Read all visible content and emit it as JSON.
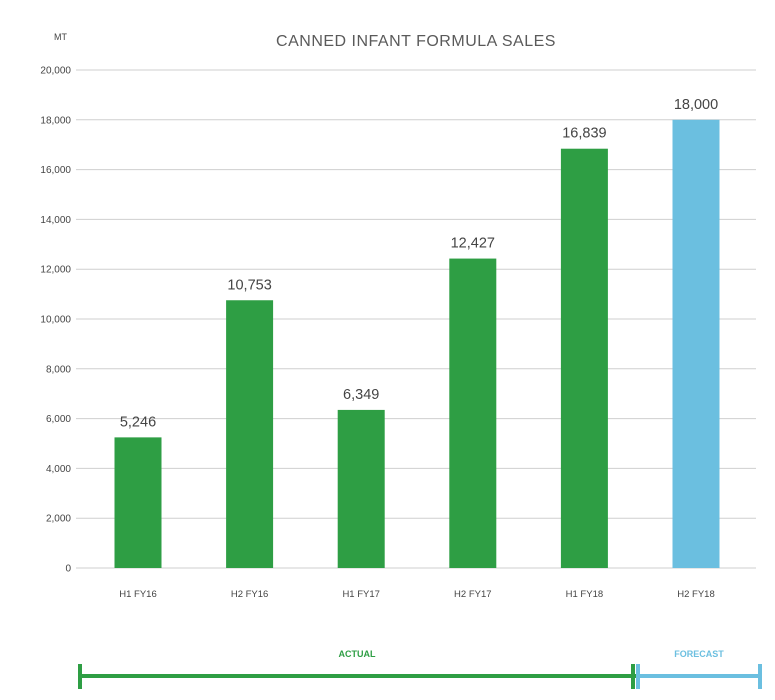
{
  "chart_data": {
    "type": "bar",
    "title": "CANNED INFANT FORMULA SALES",
    "ylabel": "MT",
    "xlabel": "",
    "ylim": [
      0,
      20000
    ],
    "yticks": [
      "0",
      "2,000",
      "4,000",
      "6,000",
      "8,000",
      "10,000",
      "12,000",
      "14,000",
      "16,000",
      "18,000",
      "20,000"
    ],
    "categories": [
      "H1 FY16",
      "H2 FY16",
      "H1 FY17",
      "H2 FY17",
      "H1 FY18",
      "H2 FY18"
    ],
    "values": [
      5246,
      10753,
      6349,
      12427,
      16839,
      18000
    ],
    "value_labels": [
      "5,246",
      "10,753",
      "6,349",
      "12,427",
      "16,839",
      "18,000"
    ],
    "bar_colors": [
      "#2e9e44",
      "#2e9e44",
      "#2e9e44",
      "#2e9e44",
      "#2e9e44",
      "#6bbfe0"
    ],
    "grid": true,
    "legend": "none"
  },
  "periods": {
    "actual": {
      "label": "ACTUAL",
      "color": "#2e9e44"
    },
    "forecast": {
      "label": "FORECAST",
      "color": "#6bbfe0"
    }
  }
}
